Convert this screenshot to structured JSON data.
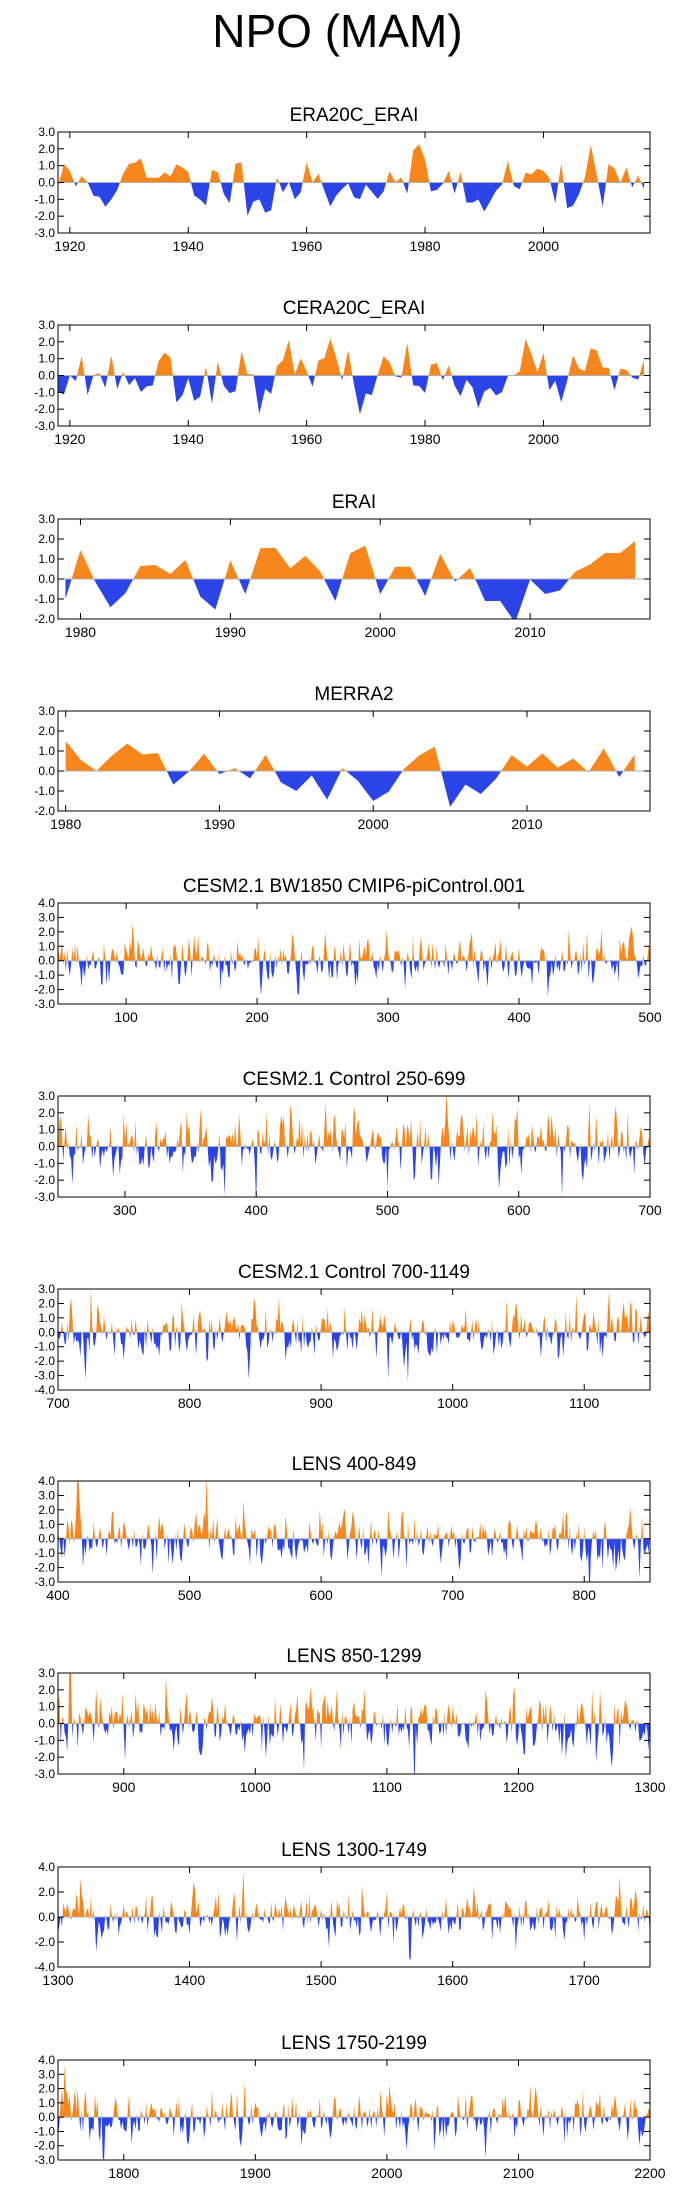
{
  "figure_title": "NPO (MAM)",
  "colors": {
    "positive": "#f7861c",
    "negative": "#2a44e8",
    "axis": "#000000",
    "zero_line": "#b0b0b0"
  },
  "chart_data": [
    {
      "type": "area",
      "title": "ERA20C_ERAI",
      "xlim": [
        1918,
        2018
      ],
      "ylim": [
        -3.0,
        3.0
      ],
      "yticks": [
        "3.0",
        "2.0",
        "1.0",
        "0.0",
        "-1.0",
        "-2.0",
        "-3.0"
      ],
      "xticks": [
        1920,
        1940,
        1960,
        1980,
        2000
      ],
      "series": {
        "mode": "annual",
        "start": 1918,
        "end": 2017,
        "seed": 11,
        "amp": 0.9
      }
    },
    {
      "type": "area",
      "title": "CERA20C_ERAI",
      "xlim": [
        1918,
        2018
      ],
      "ylim": [
        -3.0,
        3.0
      ],
      "yticks": [
        "3.0",
        "2.0",
        "1.0",
        "0.0",
        "-1.0",
        "-2.0",
        "-3.0"
      ],
      "xticks": [
        1920,
        1940,
        1960,
        1980,
        2000
      ],
      "series": {
        "mode": "annual",
        "start": 1918,
        "end": 2017,
        "seed": 23,
        "amp": 0.85
      }
    },
    {
      "type": "area",
      "title": "ERAI",
      "xlim": [
        1978.5,
        2018
      ],
      "ylim": [
        -2.0,
        3.0
      ],
      "yticks": [
        "3.0",
        "2.0",
        "1.0",
        "0.0",
        "-1.0",
        "-2.0"
      ],
      "xticks": [
        1980,
        1990,
        2000,
        2010
      ],
      "series": {
        "mode": "annual",
        "start": 1979,
        "end": 2017,
        "seed": 37,
        "amp": 0.9
      }
    },
    {
      "type": "area",
      "title": "MERRA2",
      "xlim": [
        1979.5,
        2018
      ],
      "ylim": [
        -2.0,
        3.0
      ],
      "yticks": [
        "3.0",
        "2.0",
        "1.0",
        "0.0",
        "-1.0",
        "-2.0"
      ],
      "xticks": [
        1980,
        1990,
        2000,
        2010
      ],
      "series": {
        "mode": "annual",
        "start": 1980,
        "end": 2017,
        "seed": 41,
        "amp": 0.9
      }
    },
    {
      "type": "area",
      "title": "CESM2.1 BW1850 CMIP6-piControl.001",
      "xlim": [
        48,
        500
      ],
      "ylim": [
        -3.0,
        4.0
      ],
      "yticks": [
        "4.0",
        "3.0",
        "2.0",
        "1.0",
        "0.0",
        "-1.0",
        "-2.0",
        "-3.0"
      ],
      "xticks": [
        100,
        200,
        300,
        400,
        500
      ],
      "series": {
        "mode": "dense",
        "start": 48,
        "end": 500,
        "seed": 53,
        "amp": 0.85
      }
    },
    {
      "type": "area",
      "title": "CESM2.1 Control 250-699",
      "xlim": [
        249,
        700
      ],
      "ylim": [
        -3.0,
        3.0
      ],
      "yticks": [
        "3.0",
        "2.0",
        "1.0",
        "0.0",
        "-1.0",
        "-2.0",
        "-3.0"
      ],
      "xticks": [
        300,
        400,
        500,
        600,
        700
      ],
      "series": {
        "mode": "dense",
        "start": 249,
        "end": 700,
        "seed": 67,
        "amp": 0.85
      }
    },
    {
      "type": "area",
      "title": "CESM2.1 Control 700-1149",
      "xlim": [
        700,
        1150
      ],
      "ylim": [
        -4.0,
        3.0
      ],
      "yticks": [
        "3.0",
        "2.0",
        "1.0",
        "0.0",
        "-1.0",
        "-2.0",
        "-3.0",
        "-4.0"
      ],
      "xticks": [
        700,
        800,
        900,
        1000,
        1100
      ],
      "series": {
        "mode": "dense",
        "start": 700,
        "end": 1150,
        "seed": 71,
        "amp": 0.85
      }
    },
    {
      "type": "area",
      "title": "LENS 400-849",
      "xlim": [
        400,
        850
      ],
      "ylim": [
        -3.0,
        4.0
      ],
      "yticks": [
        "4.0",
        "3.0",
        "2.0",
        "1.0",
        "0.0",
        "-1.0",
        "-2.0",
        "-3.0"
      ],
      "xticks": [
        400,
        500,
        600,
        700,
        800
      ],
      "series": {
        "mode": "dense",
        "start": 400,
        "end": 850,
        "seed": 83,
        "amp": 0.85
      }
    },
    {
      "type": "area",
      "title": "LENS 850-1299",
      "xlim": [
        850,
        1300
      ],
      "ylim": [
        -3.0,
        3.0
      ],
      "yticks": [
        "3.0",
        "2.0",
        "1.0",
        "0.0",
        "-1.0",
        "-2.0",
        "-3.0"
      ],
      "xticks": [
        900,
        1000,
        1100,
        1200,
        1300
      ],
      "series": {
        "mode": "dense",
        "start": 850,
        "end": 1300,
        "seed": 97,
        "amp": 0.85
      }
    },
    {
      "type": "area",
      "title": "LENS 1300-1749",
      "xlim": [
        1300,
        1750
      ],
      "ylim": [
        -4.0,
        4.0
      ],
      "yticks": [
        "4.0",
        "2.0",
        "0.0",
        "-2.0",
        "-4.0"
      ],
      "xticks": [
        1300,
        1400,
        1500,
        1600,
        1700
      ],
      "series": {
        "mode": "dense",
        "start": 1300,
        "end": 1750,
        "seed": 101,
        "amp": 0.85
      }
    },
    {
      "type": "area",
      "title": "LENS 1750-2199",
      "xlim": [
        1750,
        2200
      ],
      "ylim": [
        -3.0,
        4.0
      ],
      "yticks": [
        "4.0",
        "3.0",
        "2.0",
        "1.0",
        "0.0",
        "-1.0",
        "-2.0",
        "-3.0"
      ],
      "xticks": [
        1800,
        1900,
        2000,
        2100,
        2200
      ],
      "series": {
        "mode": "dense",
        "start": 1750,
        "end": 2200,
        "seed": 113,
        "amp": 0.85
      }
    }
  ]
}
